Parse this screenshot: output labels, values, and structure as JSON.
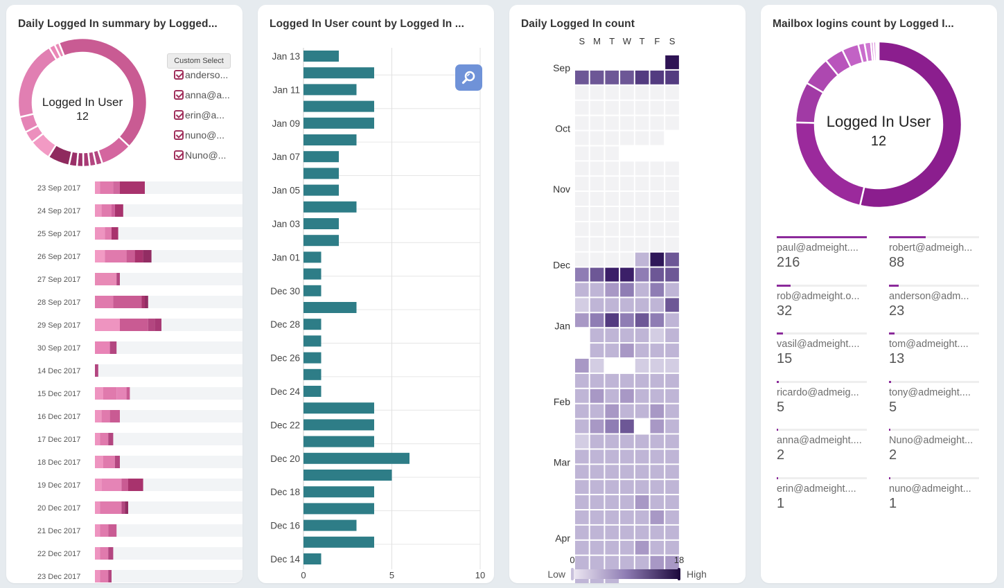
{
  "panel1": {
    "title": "Daily Logged In summary by Logged...",
    "donut_label": "Logged In User",
    "donut_value": "12",
    "custom_select": "Custom Select",
    "legend": [
      "anderso...",
      "anna@a...",
      "erin@a...",
      "nuno@...",
      "Nuno@..."
    ],
    "colors": [
      "#f09ac4",
      "#e07aad",
      "#d0689e",
      "#bf5a92",
      "#a83a75",
      "#922d63",
      "#7d2353"
    ],
    "donut_segments": [
      {
        "value": 1.2,
        "color": "#e88ab6"
      },
      {
        "value": 43,
        "color": "#c95b93"
      },
      {
        "value": 8,
        "color": "#d4669f"
      },
      {
        "value": 1.6,
        "color": "#b34680"
      },
      {
        "value": 1.6,
        "color": "#b34680"
      },
      {
        "value": 1.6,
        "color": "#a83a75"
      },
      {
        "value": 1.6,
        "color": "#a0336d"
      },
      {
        "value": 2,
        "color": "#9a3068"
      },
      {
        "value": 5.5,
        "color": "#8f2a5e"
      },
      {
        "value": 5.5,
        "color": "#f29ac4"
      },
      {
        "value": 3,
        "color": "#ec8fbd"
      },
      {
        "value": 4,
        "color": "#e584b6"
      },
      {
        "value": 20,
        "color": "#e17fb2"
      },
      {
        "value": 1.5,
        "color": "#ea86b7"
      }
    ],
    "rows": [
      {
        "date": "23 Sep 2017",
        "segs": [
          [
            0.3,
            "#ee94c0"
          ],
          [
            0.8,
            "#e07aad"
          ],
          [
            0.4,
            "#d0689e"
          ],
          [
            1.5,
            "#a8336d"
          ]
        ]
      },
      {
        "date": "24 Sep 2017",
        "segs": [
          [
            0.4,
            "#ee94c0"
          ],
          [
            0.6,
            "#e07aad"
          ],
          [
            0.2,
            "#cf5f9a"
          ],
          [
            0.5,
            "#a8336d"
          ]
        ]
      },
      {
        "date": "25 Sep 2017",
        "segs": [
          [
            0.6,
            "#ee94c0"
          ],
          [
            0.4,
            "#e07aad"
          ],
          [
            0.4,
            "#a8336d"
          ]
        ]
      },
      {
        "date": "26 Sep 2017",
        "segs": [
          [
            0.6,
            "#f29ac4"
          ],
          [
            1.3,
            "#e07aad"
          ],
          [
            0.5,
            "#c95b93"
          ],
          [
            0.5,
            "#a8336d"
          ],
          [
            0.5,
            "#922d63"
          ]
        ]
      },
      {
        "date": "27 Sep 2017",
        "segs": [
          [
            1.3,
            "#e88ab6"
          ],
          [
            0.2,
            "#b34680"
          ]
        ]
      },
      {
        "date": "28 Sep 2017",
        "segs": [
          [
            1.1,
            "#e07aad"
          ],
          [
            1.7,
            "#c95b93"
          ],
          [
            0.2,
            "#a8336d"
          ],
          [
            0.2,
            "#922d63"
          ]
        ]
      },
      {
        "date": "29 Sep 2017",
        "segs": [
          [
            1.5,
            "#ee94c0"
          ],
          [
            1.7,
            "#c95b93"
          ],
          [
            0.4,
            "#b34680"
          ],
          [
            0.4,
            "#a83a75"
          ]
        ]
      },
      {
        "date": "30 Sep 2017",
        "segs": [
          [
            0.9,
            "#e884b6"
          ],
          [
            0.4,
            "#b34680"
          ]
        ]
      },
      {
        "date": "14 Dec 2017",
        "segs": [
          [
            0.2,
            "#b34680"
          ]
        ]
      },
      {
        "date": "15 Dec 2017",
        "segs": [
          [
            0.5,
            "#ee94c0"
          ],
          [
            0.8,
            "#e07aad"
          ],
          [
            0.6,
            "#e584b6"
          ],
          [
            0.2,
            "#c95b93"
          ]
        ]
      },
      {
        "date": "16 Dec 2017",
        "segs": [
          [
            0.4,
            "#ee94c0"
          ],
          [
            0.5,
            "#e07aad"
          ],
          [
            0.6,
            "#c95b93"
          ]
        ]
      },
      {
        "date": "17 Dec 2017",
        "segs": [
          [
            0.3,
            "#ee94c0"
          ],
          [
            0.5,
            "#e07aad"
          ],
          [
            0.3,
            "#b34680"
          ]
        ]
      },
      {
        "date": "18 Dec 2017",
        "segs": [
          [
            0.5,
            "#ee94c0"
          ],
          [
            0.7,
            "#e07aad"
          ],
          [
            0.3,
            "#b34680"
          ]
        ]
      },
      {
        "date": "19 Dec 2017",
        "segs": [
          [
            0.4,
            "#ee94c0"
          ],
          [
            1.2,
            "#e584b6"
          ],
          [
            0.4,
            "#c95b93"
          ],
          [
            0.9,
            "#a8336d"
          ]
        ]
      },
      {
        "date": "20 Dec 2017",
        "segs": [
          [
            0.3,
            "#ee94c0"
          ],
          [
            1.3,
            "#e07aad"
          ],
          [
            0.2,
            "#b34680"
          ],
          [
            0.2,
            "#922d63"
          ]
        ]
      },
      {
        "date": "21 Dec 2017",
        "segs": [
          [
            0.3,
            "#ee94c0"
          ],
          [
            0.5,
            "#e07aad"
          ],
          [
            0.5,
            "#c95b93"
          ]
        ]
      },
      {
        "date": "22 Dec 2017",
        "segs": [
          [
            0.3,
            "#ee94c0"
          ],
          [
            0.5,
            "#e07aad"
          ],
          [
            0.3,
            "#b34680"
          ]
        ]
      },
      {
        "date": "23 Dec 2017",
        "segs": [
          [
            0.3,
            "#ee94c0"
          ],
          [
            0.5,
            "#e07aad"
          ],
          [
            0.2,
            "#b34680"
          ]
        ]
      }
    ]
  },
  "panel2": {
    "title": "Logged In User count by Logged In ...",
    "bar_color": "#2e7d87",
    "zoom_color": "#6f92d8",
    "axis_ticks": [
      "0",
      "5",
      "10"
    ],
    "bars": [
      2,
      4,
      3,
      4,
      4,
      3,
      2,
      2,
      2,
      3,
      2,
      2,
      1,
      1,
      1,
      3,
      1,
      1,
      1,
      1,
      1,
      4,
      4,
      4,
      6,
      5,
      4,
      4,
      3,
      4,
      1
    ],
    "date_labels": [
      "Jan 13",
      "Jan 11",
      "Jan 09",
      "Jan 07",
      "Jan 05",
      "Jan 03",
      "Jan 01",
      "Dec 30",
      "Dec 28",
      "Dec 26",
      "Dec 24",
      "Dec 22",
      "Dec 20",
      "Dec 18",
      "Dec 16",
      "Dec 14"
    ]
  },
  "panel3": {
    "title": "Daily Logged In count",
    "weekdays": [
      "S",
      "M",
      "T",
      "W",
      "T",
      "F",
      "S"
    ],
    "months": [
      {
        "label": "Sep",
        "row": 0
      },
      {
        "label": "Oct",
        "row": 4
      },
      {
        "label": "Nov",
        "row": 8
      },
      {
        "label": "Dec",
        "row": 13
      },
      {
        "label": "Jan",
        "row": 17
      },
      {
        "label": "Feb",
        "row": 22
      },
      {
        "label": "Mar",
        "row": 26
      },
      {
        "label": "Apr",
        "row": 31
      }
    ],
    "scale_min": "0",
    "scale_max": "18",
    "low_label": "Low",
    "high_label": "High",
    "rows": [
      "......9",
      "5555666",
      "0000000",
      "0000000",
      "0000000",
      "000000~",
      "000~~~~",
      "0000000",
      "0000000",
      "0000000",
      "0000000",
      "0000000",
      "0000000",
      "00002B5",
      "4588455",
      "2234242",
      "1222225",
      "3464542",
      "~222212",
      "~223222",
      "31~~111",
      "2222222",
      "2323222",
      "2232232",
      "2345~32",
      "1222222",
      "2222222",
      "2222222",
      "2222222",
      "2222322",
      "2222232",
      "2222222",
      "2222322",
      "2222233",
      "222...."
    ]
  },
  "panel4": {
    "title": "Mailbox logins count by Logged I...",
    "donut_label": "Logged In User",
    "donut_value": "12",
    "donut_segments": [
      {
        "value": 216,
        "color": "#8b1e8e"
      },
      {
        "value": 88,
        "color": "#9b2a9c"
      },
      {
        "value": 32,
        "color": "#a13aa5"
      },
      {
        "value": 23,
        "color": "#ad48b0"
      },
      {
        "value": 15,
        "color": "#b955bc"
      },
      {
        "value": 13,
        "color": "#c262c5"
      },
      {
        "value": 5,
        "color": "#c96dcc"
      },
      {
        "value": 5,
        "color": "#cf77d2"
      },
      {
        "value": 2,
        "color": "#d482d6"
      },
      {
        "value": 2,
        "color": "#d98cdb"
      },
      {
        "value": 1,
        "color": "#dd95df"
      },
      {
        "value": 1,
        "color": "#e19ee2"
      }
    ],
    "stats": [
      {
        "email": "paul@admeight....",
        "count": "216",
        "fraction": 1.0
      },
      {
        "email": "robert@admeigh...",
        "count": "88",
        "fraction": 0.41
      },
      {
        "email": "rob@admeight.o...",
        "count": "32",
        "fraction": 0.15
      },
      {
        "email": "anderson@adm...",
        "count": "23",
        "fraction": 0.11
      },
      {
        "email": "vasil@admeight....",
        "count": "15",
        "fraction": 0.07
      },
      {
        "email": "tom@admeight....",
        "count": "13",
        "fraction": 0.06
      },
      {
        "email": "ricardo@admeig...",
        "count": "5",
        "fraction": 0.023
      },
      {
        "email": "tony@admeight....",
        "count": "5",
        "fraction": 0.023
      },
      {
        "email": "anna@admeight....",
        "count": "2",
        "fraction": 0.009
      },
      {
        "email": "Nuno@admeight...",
        "count": "2",
        "fraction": 0.009
      },
      {
        "email": "erin@admeight....",
        "count": "1",
        "fraction": 0.005
      },
      {
        "email": "nuno@admeight...",
        "count": "1",
        "fraction": 0.005
      }
    ]
  }
}
